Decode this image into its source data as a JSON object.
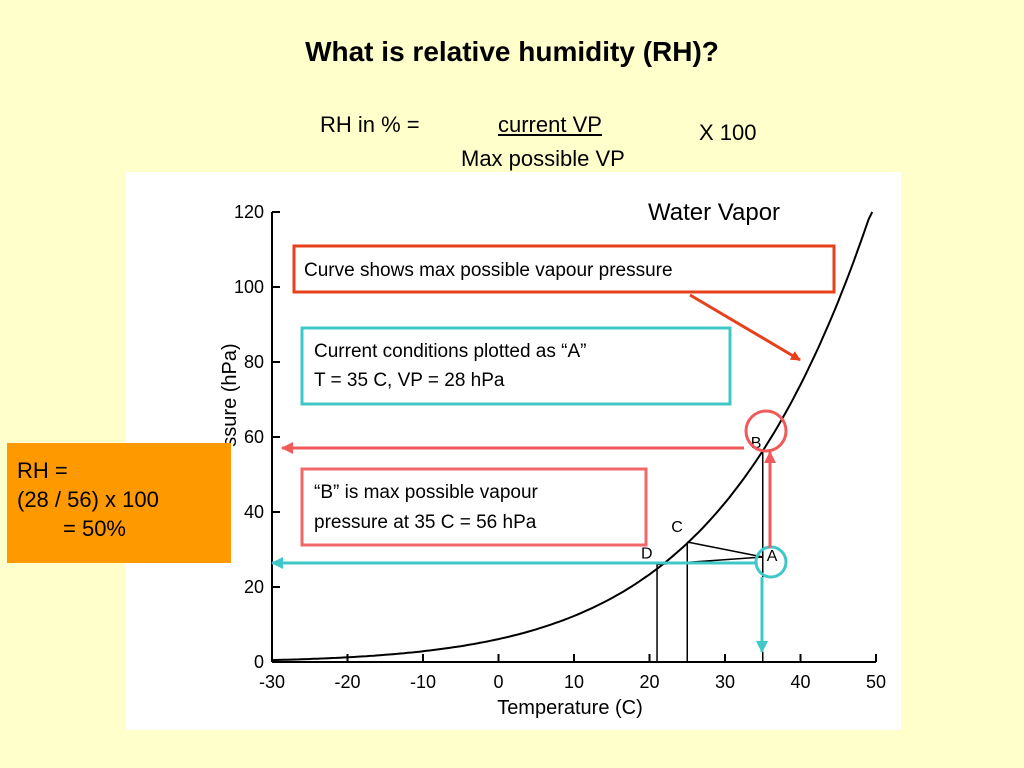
{
  "slide": {
    "title": "What is relative humidity (RH)?",
    "formula": {
      "prefix": "RH in % =",
      "numerator": "current VP",
      "denominator": "Max possible VP",
      "multiplier": "X 100"
    }
  },
  "callouts": {
    "curve_note": "Curve shows max possible vapour pressure",
    "current_line1": "Current conditions plotted as “A”",
    "current_line2": "T = 35 C,  VP = 28 hPa",
    "b_line1": "“B” is max possible vapour",
    "b_line2": "pressure at 35 C = 56 hPa"
  },
  "rh_calc": {
    "line1": "RH =",
    "line2": "(28 / 56) x 100",
    "line3": "= 50%"
  },
  "colors": {
    "background": "#ffffcc",
    "red_box": "#e8401c",
    "cyan_box": "#40c8c8",
    "pink_box": "#f06868",
    "red_arrow": "#f05a5a",
    "cyan_arrow": "#40c8c8",
    "orange_box": "#ff9900"
  },
  "chart_data": {
    "type": "line",
    "title": "Water Vapor",
    "xlabel": "Temperature (C)",
    "ylabel": "ssure (hPa)",
    "xlim": [
      -30,
      50
    ],
    "ylim": [
      0,
      120
    ],
    "x_ticks": [
      -30,
      -20,
      -10,
      0,
      10,
      20,
      30,
      40,
      50
    ],
    "y_ticks": [
      0,
      20,
      40,
      60,
      80,
      100,
      120
    ],
    "grid": false,
    "series": [
      {
        "x": [
          -30,
          -25,
          -20,
          -15,
          -10,
          -5,
          0,
          5,
          10,
          15,
          20,
          25,
          30,
          35,
          40,
          45,
          50
        ],
        "values": [
          0.5,
          0.8,
          1.3,
          1.9,
          2.9,
          4.2,
          6.1,
          8.7,
          12.3,
          17.0,
          23.4,
          31.7,
          42.4,
          56.2,
          73.8,
          95.8,
          123.4
        ]
      }
    ],
    "points": [
      {
        "label": "A",
        "x": 35,
        "y": 28
      },
      {
        "label": "B",
        "x": 35,
        "y": 56
      },
      {
        "label": "C",
        "x": 25,
        "y": 32
      },
      {
        "label": "D",
        "x": 21,
        "y": 26
      }
    ]
  }
}
